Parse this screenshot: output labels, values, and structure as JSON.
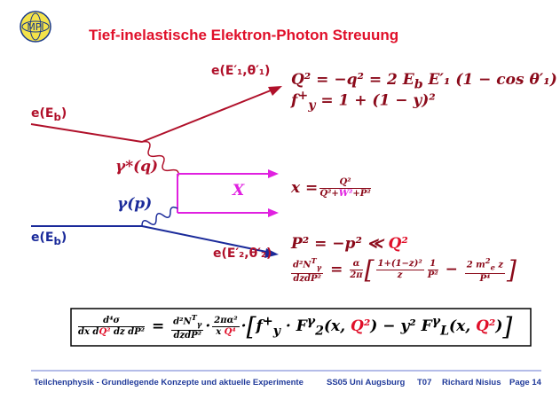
{
  "header": {
    "logo": "MPI",
    "title": "Tief-inelastische Elektron-Photon Streuung"
  },
  "diagram": {
    "e_out1": [
      "e(E′₁,θ′₁)"
    ],
    "e_in1": [
      "e(E",
      "b",
      ")"
    ],
    "gamma_star": "γ*(q)",
    "gamma": "γ(p)",
    "X": "X",
    "e_in2": [
      "e(E",
      "b",
      ")"
    ],
    "e_out2": [
      "e(E′₂,θ′₂)"
    ]
  },
  "formulas": {
    "q2": [
      "Q² = −q² = 2 E",
      "b",
      " E′₁ (1 − cos θ′₁)"
    ],
    "fy": [
      "f",
      "+",
      "y",
      " = 1 + (1 − y)²"
    ],
    "x": [
      "x =",
      "Q²",
      "Q²+",
      "W²",
      "+P²"
    ],
    "p2": [
      "P² = −p² ≪",
      "Q²"
    ],
    "nt": [
      "d²N",
      "T",
      "γ",
      "dzdP²",
      "=",
      "α",
      "2π",
      "1+(1−z)²",
      "z",
      "1",
      "P²",
      "−",
      "2 m",
      "2",
      "e",
      " z",
      "P⁴"
    ],
    "box": [
      "d⁴σ",
      "dx d",
      "Q²",
      " dz dP²",
      "=",
      "d²N",
      "T",
      "γ",
      "dzdP²",
      "·",
      "2πα²",
      "x ",
      "Q⁴",
      "·",
      "f",
      "+",
      "y",
      " · F",
      "γ",
      "2",
      "(x, ",
      "Q²",
      ") − y² F",
      "γ",
      "L",
      "(x, ",
      "Q²",
      ")"
    ]
  },
  "footer": {
    "course": "Teilchenphysik - Grundlegende Konzepte und aktuelle Experimente",
    "term": "SS05 Uni Augsburg",
    "lecture": "T07",
    "author": "Richard Nisius",
    "page": "Page 14"
  }
}
